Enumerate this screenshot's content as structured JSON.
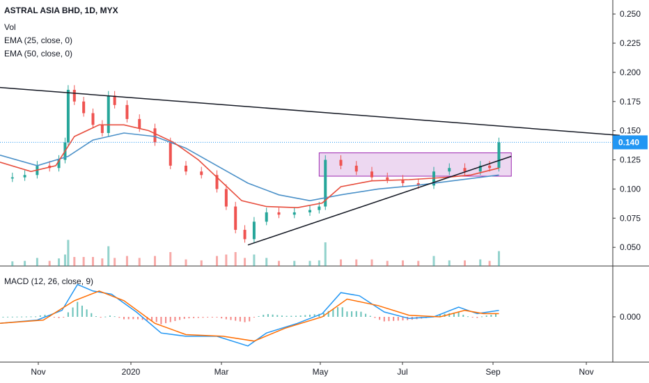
{
  "chart_data": {
    "type": "candlestick",
    "title": "ASTRAL ASIA BHD, 1D, MYX",
    "indicators": [
      "Vol",
      "EMA (25, close, 0)",
      "EMA (50, close, 0)"
    ],
    "macd_label": "MACD (12, 26, close, 9)",
    "price_axis": {
      "ticks": [
        "0.250",
        "0.225",
        "0.200",
        "0.175",
        "0.150",
        "0.125",
        "0.100",
        "0.075",
        "0.050"
      ],
      "ylim": [
        0.034,
        0.262
      ]
    },
    "current_price": "0.140",
    "macd_axis": {
      "ticks": [
        "0.000"
      ]
    },
    "time_axis": [
      "Nov",
      "2020",
      "Mar",
      "May",
      "Jul",
      "Sep",
      "Nov"
    ],
    "price_series": [
      {
        "t": 0,
        "v": 0.109
      },
      {
        "t": 4,
        "v": 0.11
      },
      {
        "t": 8,
        "v": 0.112
      },
      {
        "t": 12,
        "v": 0.12
      },
      {
        "t": 16,
        "v": 0.118
      },
      {
        "t": 19,
        "v": 0.125
      },
      {
        "t": 21,
        "v": 0.14
      },
      {
        "t": 22,
        "v": 0.185
      },
      {
        "t": 24,
        "v": 0.175
      },
      {
        "t": 27,
        "v": 0.165
      },
      {
        "t": 30,
        "v": 0.155
      },
      {
        "t": 33,
        "v": 0.148
      },
      {
        "t": 35,
        "v": 0.18
      },
      {
        "t": 37,
        "v": 0.172
      },
      {
        "t": 41,
        "v": 0.16
      },
      {
        "t": 45,
        "v": 0.152
      },
      {
        "t": 50,
        "v": 0.14
      },
      {
        "t": 55,
        "v": 0.12
      },
      {
        "t": 60,
        "v": 0.115
      },
      {
        "t": 65,
        "v": 0.112
      },
      {
        "t": 70,
        "v": 0.1
      },
      {
        "t": 73,
        "v": 0.085
      },
      {
        "t": 76,
        "v": 0.065
      },
      {
        "t": 79,
        "v": 0.057
      },
      {
        "t": 82,
        "v": 0.072
      },
      {
        "t": 86,
        "v": 0.08
      },
      {
        "t": 90,
        "v": 0.078
      },
      {
        "t": 95,
        "v": 0.08
      },
      {
        "t": 100,
        "v": 0.082
      },
      {
        "t": 103,
        "v": 0.085
      },
      {
        "t": 105,
        "v": 0.125
      },
      {
        "t": 110,
        "v": 0.12
      },
      {
        "t": 115,
        "v": 0.115
      },
      {
        "t": 120,
        "v": 0.11
      },
      {
        "t": 125,
        "v": 0.108
      },
      {
        "t": 130,
        "v": 0.105
      },
      {
        "t": 135,
        "v": 0.103
      },
      {
        "t": 140,
        "v": 0.115
      },
      {
        "t": 145,
        "v": 0.118
      },
      {
        "t": 150,
        "v": 0.115
      },
      {
        "t": 155,
        "v": 0.12
      },
      {
        "t": 158,
        "v": 0.118
      },
      {
        "t": 161,
        "v": 0.14
      }
    ],
    "ema25_series": [
      {
        "t": 0,
        "v": 0.123
      },
      {
        "t": 10,
        "v": 0.115
      },
      {
        "t": 18,
        "v": 0.12
      },
      {
        "t": 24,
        "v": 0.145
      },
      {
        "t": 32,
        "v": 0.155
      },
      {
        "t": 40,
        "v": 0.155
      },
      {
        "t": 48,
        "v": 0.15
      },
      {
        "t": 56,
        "v": 0.14
      },
      {
        "t": 64,
        "v": 0.125
      },
      {
        "t": 72,
        "v": 0.105
      },
      {
        "t": 78,
        "v": 0.09
      },
      {
        "t": 86,
        "v": 0.085
      },
      {
        "t": 96,
        "v": 0.084
      },
      {
        "t": 104,
        "v": 0.088
      },
      {
        "t": 110,
        "v": 0.102
      },
      {
        "t": 120,
        "v": 0.107
      },
      {
        "t": 132,
        "v": 0.108
      },
      {
        "t": 144,
        "v": 0.11
      },
      {
        "t": 152,
        "v": 0.112
      },
      {
        "t": 161,
        "v": 0.118
      }
    ],
    "ema50_series": [
      {
        "t": 0,
        "v": 0.129
      },
      {
        "t": 12,
        "v": 0.12
      },
      {
        "t": 22,
        "v": 0.128
      },
      {
        "t": 30,
        "v": 0.142
      },
      {
        "t": 40,
        "v": 0.148
      },
      {
        "t": 50,
        "v": 0.145
      },
      {
        "t": 60,
        "v": 0.135
      },
      {
        "t": 70,
        "v": 0.12
      },
      {
        "t": 80,
        "v": 0.105
      },
      {
        "t": 90,
        "v": 0.095
      },
      {
        "t": 100,
        "v": 0.09
      },
      {
        "t": 110,
        "v": 0.095
      },
      {
        "t": 122,
        "v": 0.1
      },
      {
        "t": 134,
        "v": 0.103
      },
      {
        "t": 146,
        "v": 0.107
      },
      {
        "t": 161,
        "v": 0.112
      }
    ],
    "macd_series": [
      {
        "t": 0,
        "v": -0.004
      },
      {
        "t": 12,
        "v": -0.002
      },
      {
        "t": 20,
        "v": 0.004
      },
      {
        "t": 25,
        "v": 0.02
      },
      {
        "t": 30,
        "v": 0.016
      },
      {
        "t": 36,
        "v": 0.014
      },
      {
        "t": 44,
        "v": 0.003
      },
      {
        "t": 52,
        "v": -0.01
      },
      {
        "t": 60,
        "v": -0.012
      },
      {
        "t": 70,
        "v": -0.012
      },
      {
        "t": 80,
        "v": -0.018
      },
      {
        "t": 86,
        "v": -0.01
      },
      {
        "t": 96,
        "v": -0.004
      },
      {
        "t": 104,
        "v": 0.002
      },
      {
        "t": 110,
        "v": 0.015
      },
      {
        "t": 116,
        "v": 0.013
      },
      {
        "t": 124,
        "v": 0.003
      },
      {
        "t": 132,
        "v": -0.001
      },
      {
        "t": 140,
        "v": 0.0
      },
      {
        "t": 148,
        "v": 0.006
      },
      {
        "t": 154,
        "v": 0.002
      },
      {
        "t": 161,
        "v": 0.004
      }
    ],
    "signal_series": [
      {
        "t": 0,
        "v": -0.004
      },
      {
        "t": 14,
        "v": -0.002
      },
      {
        "t": 24,
        "v": 0.01
      },
      {
        "t": 32,
        "v": 0.016
      },
      {
        "t": 40,
        "v": 0.01
      },
      {
        "t": 50,
        "v": -0.004
      },
      {
        "t": 60,
        "v": -0.011
      },
      {
        "t": 72,
        "v": -0.012
      },
      {
        "t": 82,
        "v": -0.015
      },
      {
        "t": 92,
        "v": -0.007
      },
      {
        "t": 104,
        "v": 0.0
      },
      {
        "t": 112,
        "v": 0.011
      },
      {
        "t": 122,
        "v": 0.007
      },
      {
        "t": 132,
        "v": 0.001
      },
      {
        "t": 142,
        "v": 0.0
      },
      {
        "t": 150,
        "v": 0.004
      },
      {
        "t": 156,
        "v": 0.002
      },
      {
        "t": 161,
        "v": 0.002
      }
    ],
    "resistance_line": {
      "from": {
        "t": 0,
        "v": 0.187
      },
      "to": {
        "t": 200,
        "v": 0.146
      }
    },
    "support_line": {
      "from": {
        "t": 80,
        "v": 0.052
      },
      "to": {
        "t": 165,
        "v": 0.128
      }
    },
    "consolidation_box": {
      "t_start": 103,
      "t_end": 165,
      "v_high": 0.131,
      "v_low": 0.111
    },
    "colors": {
      "up": "#26a69a",
      "down": "#ef5350",
      "ema25": "#e74c3c",
      "ema50": "#4a90c8",
      "macd": "#2196f3",
      "signal": "#ff6d00",
      "box_fill": "#e1bee7",
      "box_stroke": "#9c27b0",
      "price_label": "#2196f3"
    }
  }
}
